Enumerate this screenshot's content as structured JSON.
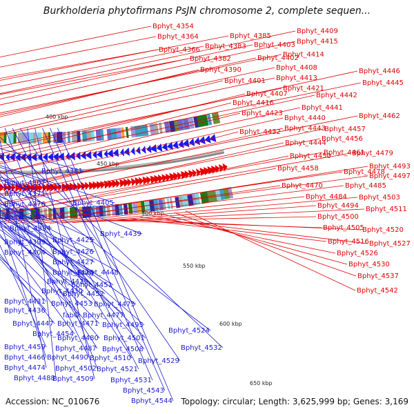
{
  "title": "Burkholderia phytofirmans PsJN chromosome 2, complete sequen...",
  "accession": "Accession: NC_010676",
  "summary": "Topology: circular; Length: 3,625,999 bp; Genes: 3,169",
  "colors": {
    "forward": "#e60000",
    "reverse": "#1a1aee",
    "backbone": "#888888",
    "label_forward": "#e00000",
    "label_reverse": "#1a1ad0"
  },
  "scale_labels": [
    "400 kbp",
    "450 kbp",
    "500 kbp",
    "550 kbp",
    "600 kbp",
    "650 kbp"
  ],
  "forward_labels": [
    "Bphyt_4354",
    "Bphyt_4364",
    "Bphyt_4366",
    "Bphyt_4385",
    "Bphyt_4383",
    "Bphyt_4382",
    "Bphyt_4409",
    "Bphyt_4403",
    "Bphyt_4415",
    "Bphyt_4414",
    "Bphyt_4402",
    "Bphyt_4390",
    "Bphyt_4408",
    "Bphyt_4413",
    "Bphyt_4401",
    "Bphyt_4421",
    "Bphyt_4446",
    "Bphyt_4445",
    "Bphyt_4407",
    "Bphyt_4442",
    "Bphyt_4416",
    "Bphyt_4441",
    "Bphyt_4423",
    "Bphyt_4440",
    "Bphyt_4462",
    "Bphyt_4443",
    "Bphyt_4457",
    "Bphyt_4432",
    "Bphyt_4456",
    "Bphyt_4444",
    "Bphyt_4461",
    "Bphyt_4479",
    "Bphyt_4450",
    "Bphyt_4458",
    "Bphyt_4478",
    "Bphyt_4493",
    "Bphyt_4497",
    "Bphyt_4470",
    "Bphyt_4485",
    "Bphyt_4484",
    "Bphyt_4503",
    "Bphyt_4494",
    "Bphyt_4511",
    "Bphyt_4500",
    "Bphyt_4505",
    "Bphyt_4520",
    "Bphyt_4516",
    "Bphyt_4527",
    "Bphyt_4526",
    "Bphyt_4530",
    "Bphyt_4537",
    "Bphyt_4542"
  ],
  "reverse_labels": [
    "Bphyt_4381",
    "Bphyt_4367",
    "Bphyt_4371",
    "Bphyt_4376",
    "Bphyt_4405",
    "Bphyt_4391",
    "Bphyt_4394",
    "Bphyt_4439",
    "Bphyt_4399",
    "Bphyt_4425",
    "Bphyt_4404",
    "Bphyt_4426",
    "Bphyt_4427",
    "Bphyt_4428",
    "Bphyt_4448",
    "Bphyt_4429",
    "Bphyt_4451",
    "Bphyt_4430",
    "Bphyt_4452",
    "Bphyt_4431",
    "Bphyt_4475",
    "Bphyt_4453",
    "Bphyt_4436",
    "fabG",
    "Bphyt_4477",
    "Bphyt_4447",
    "Bphyt_4471",
    "Bphyt_4495",
    "Bphyt_4454",
    "Bphyt_4480",
    "Bphyt_4501",
    "Bphyt_4524",
    "Bphyt_4459",
    "Bphyt_4487",
    "Bphyt_4508",
    "Bphyt_4466",
    "Bphyt_4490",
    "Bphyt_4510",
    "Bphyt_4532",
    "Bphyt_4474",
    "Bphyt_4502",
    "Bphyt_4521",
    "Bphyt_4529",
    "Bphyt_4488",
    "Bphyt_4509",
    "Bphyt_4531",
    "Bphyt_4543",
    "Bphyt_4544"
  ]
}
